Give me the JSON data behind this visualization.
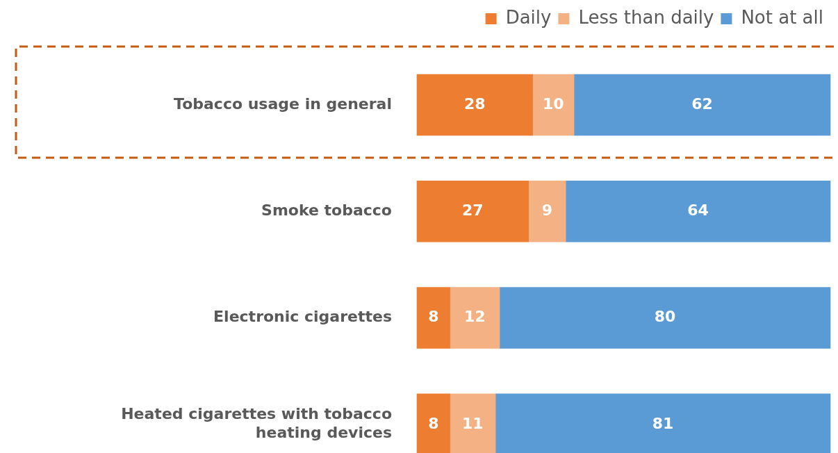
{
  "chart_data": {
    "type": "bar",
    "orientation": "horizontal",
    "stacked": true,
    "data_labels": true,
    "legend": "top right",
    "tick_labels": "y",
    "xlim": [
      0,
      100
    ],
    "categories": [
      "Tobacco usage in general",
      "Smoke tobacco",
      "Electronic cigarettes",
      "Heated cigarettes with tobacco heating devices"
    ],
    "series": [
      {
        "name": "Daily",
        "color": "#ed7d31",
        "values": [
          28,
          27,
          8,
          8
        ]
      },
      {
        "name": "Less than daily",
        "color": "#f4b183",
        "values": [
          10,
          9,
          12,
          11
        ]
      },
      {
        "name": "Not at all",
        "color": "#5b9bd5",
        "values": [
          62,
          64,
          80,
          81
        ]
      }
    ]
  }
}
